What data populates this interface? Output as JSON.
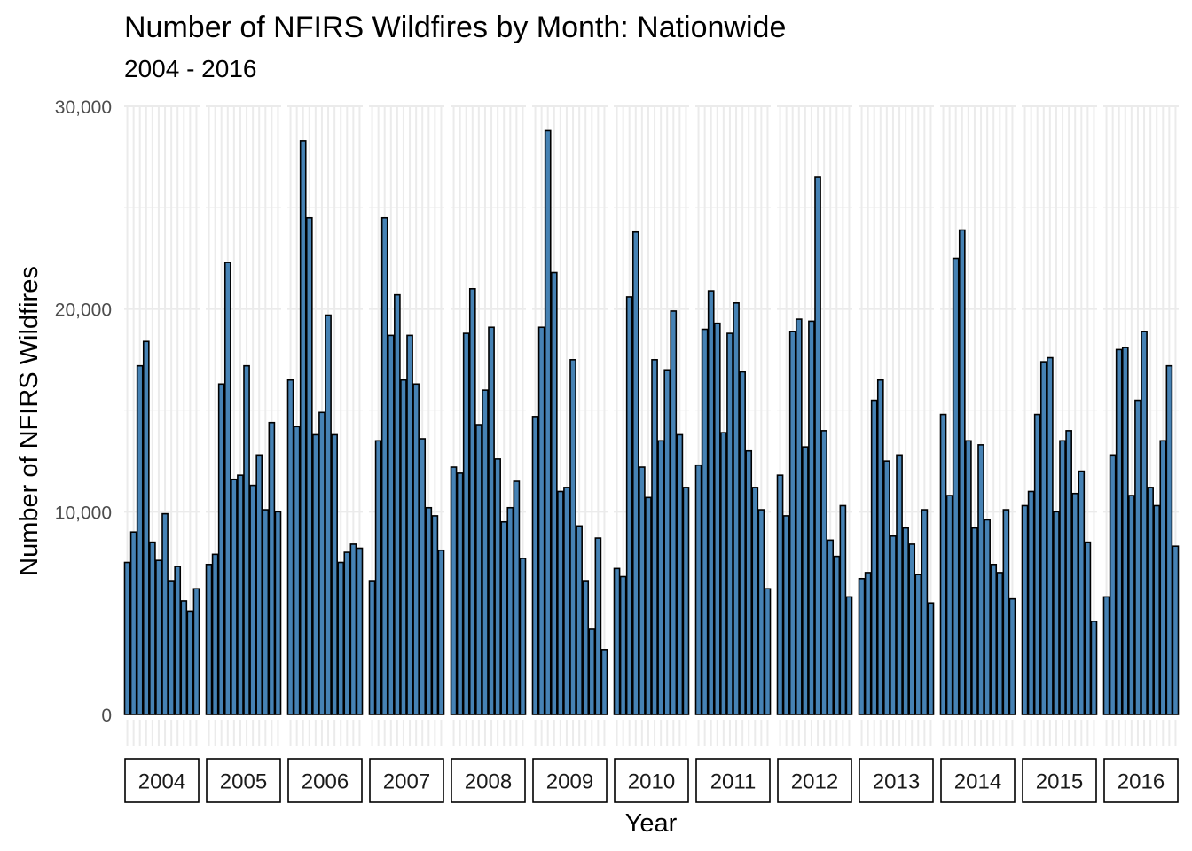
{
  "chart_data": {
    "type": "bar",
    "title": "Number of NFIRS Wildfires by Month: Nationwide",
    "subtitle": "2004 - 2016",
    "xlabel": "Year",
    "ylabel": "Number of NFIRS Wildfires",
    "ylim": [
      0,
      30000
    ],
    "y_ticks": [
      0,
      10000,
      20000,
      30000
    ],
    "y_tick_labels": [
      "0",
      "10,000",
      "20,000",
      "30,000"
    ],
    "grid": true,
    "bar_fill": "#4682B4",
    "bar_stroke": "#000000",
    "facets": [
      {
        "year": "2004",
        "values": [
          7500,
          9000,
          17200,
          18400,
          8500,
          7600,
          9900,
          6600,
          7300,
          5600,
          5100,
          6200
        ]
      },
      {
        "year": "2005",
        "values": [
          7400,
          7900,
          16300,
          22300,
          11600,
          11800,
          17200,
          11300,
          12800,
          10100,
          14400,
          10000
        ]
      },
      {
        "year": "2006",
        "values": [
          16500,
          14200,
          28300,
          24500,
          13800,
          14900,
          19700,
          13800,
          7500,
          8000,
          8400,
          8200
        ]
      },
      {
        "year": "2007",
        "values": [
          6600,
          13500,
          24500,
          18700,
          20700,
          16500,
          18700,
          16300,
          13600,
          10200,
          9800,
          8100
        ]
      },
      {
        "year": "2008",
        "values": [
          12200,
          11900,
          18800,
          21000,
          14300,
          16000,
          19100,
          12600,
          9500,
          10200,
          11500,
          7700
        ]
      },
      {
        "year": "2009",
        "values": [
          14700,
          19100,
          28800,
          21800,
          11000,
          11200,
          17500,
          9300,
          6600,
          4200,
          8700,
          3200
        ]
      },
      {
        "year": "2010",
        "values": [
          7200,
          6800,
          20600,
          23800,
          12200,
          10700,
          17500,
          13500,
          17000,
          19900,
          13800,
          11200
        ]
      },
      {
        "year": "2011",
        "values": [
          12300,
          19000,
          20900,
          19300,
          13900,
          18800,
          20300,
          16900,
          13000,
          11200,
          10100,
          6200
        ]
      },
      {
        "year": "2012",
        "values": [
          11800,
          9800,
          18900,
          19500,
          13200,
          19400,
          26500,
          14000,
          8600,
          7800,
          10300,
          5800
        ]
      },
      {
        "year": "2013",
        "values": [
          6700,
          7000,
          15500,
          16500,
          12500,
          8800,
          12800,
          9200,
          8400,
          6900,
          10100,
          5500
        ]
      },
      {
        "year": "2014",
        "values": [
          14800,
          10800,
          22500,
          23900,
          13500,
          9200,
          13300,
          9600,
          7400,
          7000,
          10100,
          5700
        ]
      },
      {
        "year": "2015",
        "values": [
          10300,
          11000,
          14800,
          17400,
          17600,
          10000,
          13500,
          14000,
          10900,
          12000,
          8500,
          4600
        ]
      },
      {
        "year": "2016",
        "values": [
          5800,
          12800,
          18000,
          18100,
          10800,
          15500,
          18900,
          11200,
          10300,
          13500,
          17200,
          8300
        ]
      }
    ]
  }
}
